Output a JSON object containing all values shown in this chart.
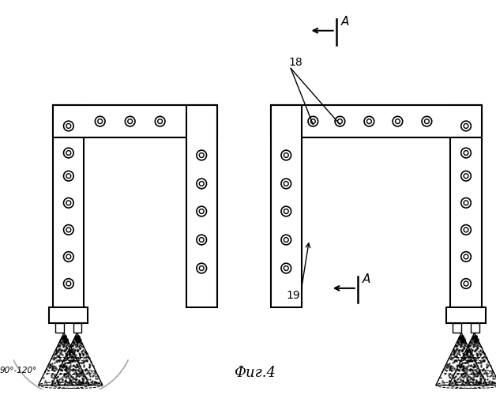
{
  "title": "Фиг.4",
  "bg_color": "#ffffff",
  "line_color": "#000000",
  "annotation_18": "18",
  "annotation_19": "19",
  "annotation_A": "A",
  "angle_label": "90°-120°"
}
